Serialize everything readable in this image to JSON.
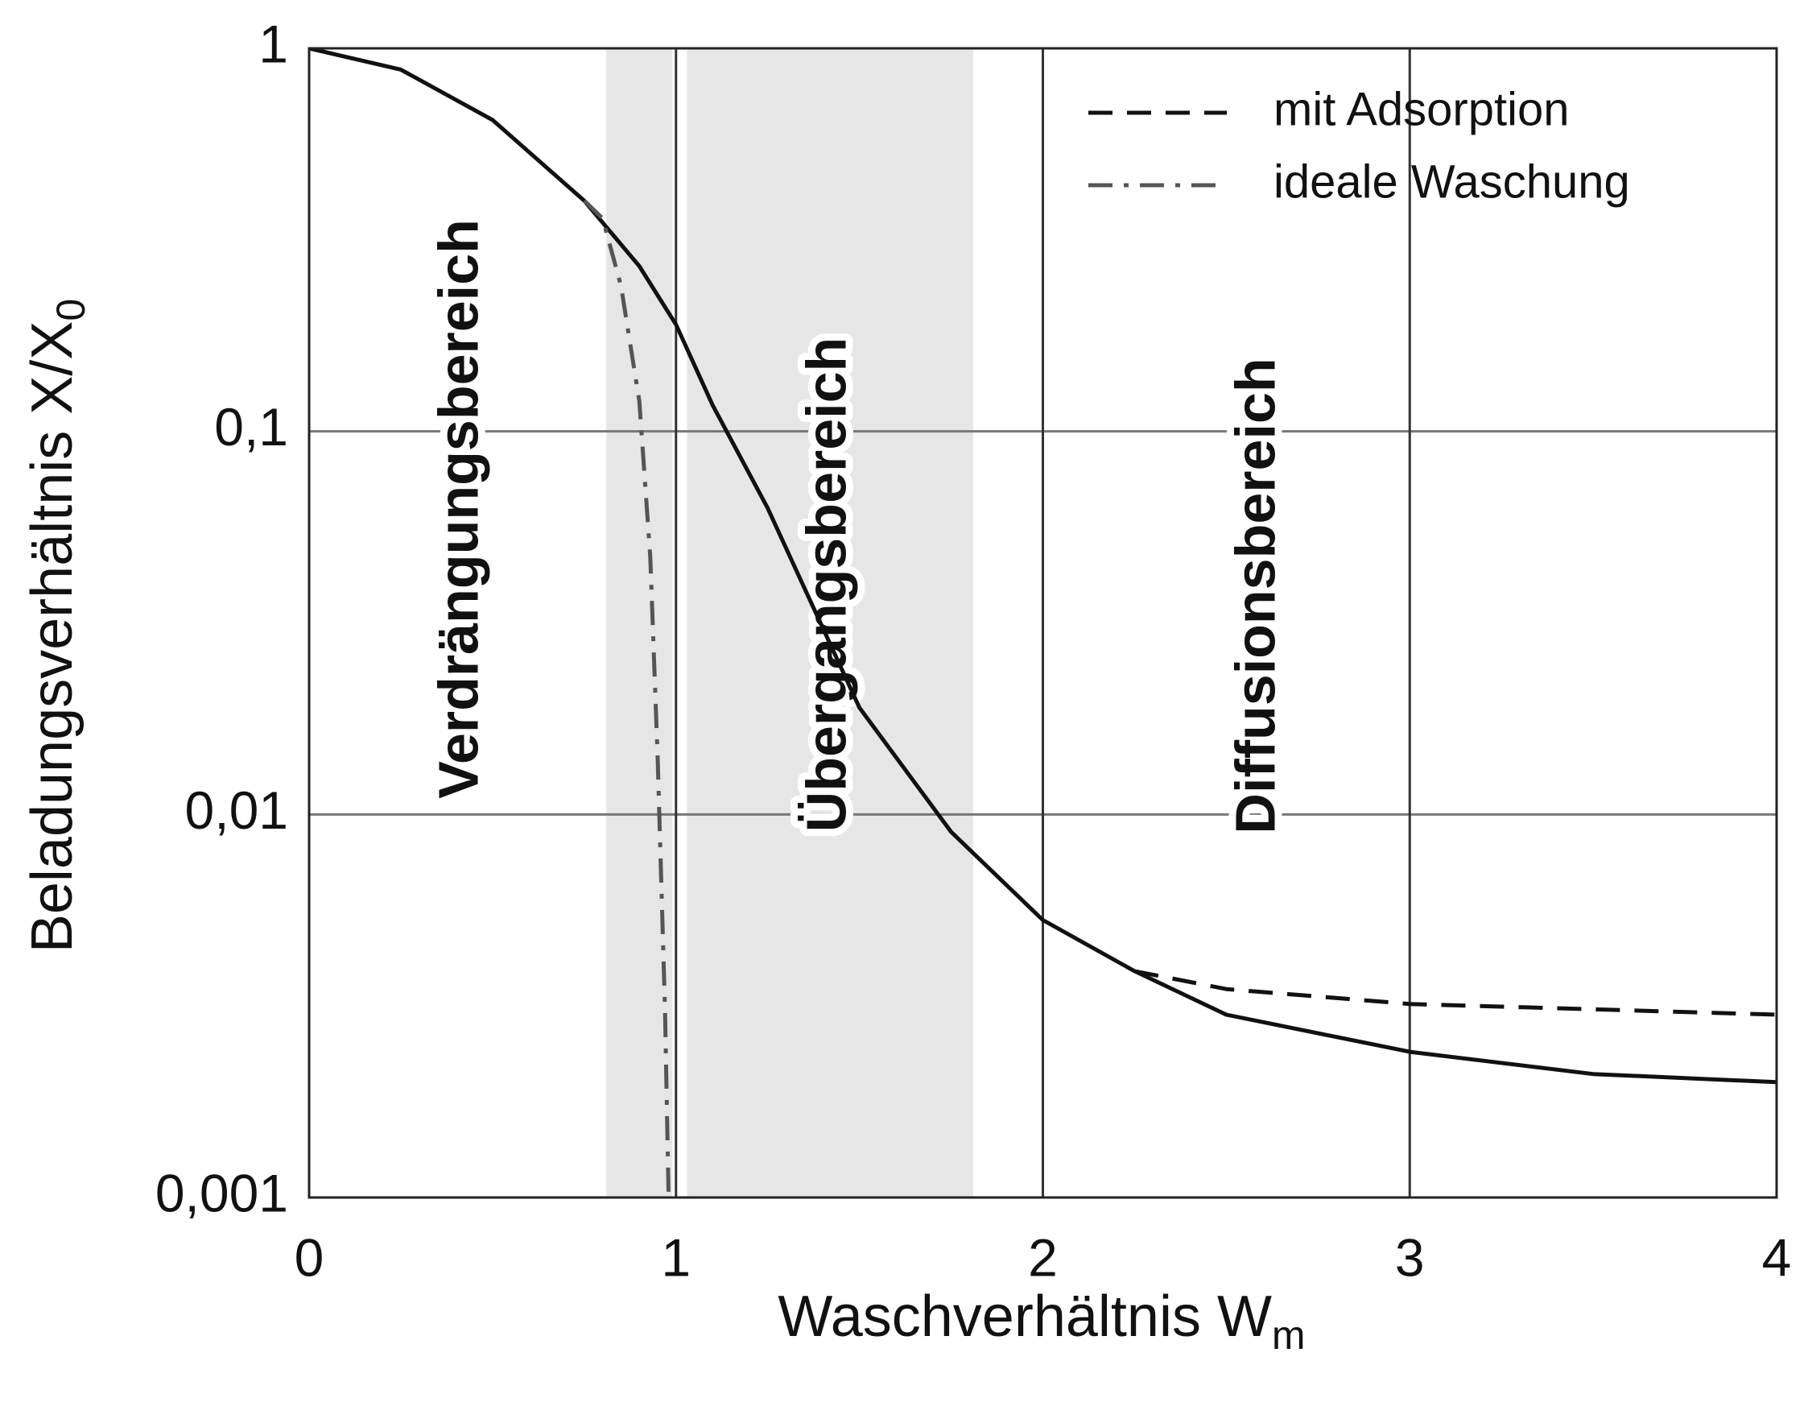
{
  "chart_data": {
    "type": "line",
    "xlabel": {
      "text": "Waschverhältnis W",
      "sub": "m"
    },
    "ylabel": {
      "text": "Beladungsverhältnis X/X",
      "sub": "0"
    },
    "x": [
      0,
      0.25,
      0.5,
      0.75,
      0.9,
      1.0,
      1.1,
      1.25,
      1.5,
      1.75,
      2.0,
      2.25,
      2.5,
      3.0,
      3.5,
      4.0
    ],
    "series": [
      {
        "color": "#111111",
        "style": "solid",
        "values": [
          1,
          0.88,
          0.65,
          0.4,
          0.27,
          0.19,
          0.117,
          0.063,
          0.019,
          0.009,
          0.0053,
          0.0039,
          0.003,
          0.0024,
          0.0021,
          0.002
        ]
      },
      {
        "name": "mit Adsorption",
        "color": "#111111",
        "style": "dashed",
        "x": [
          2.25,
          2.5,
          3.0,
          3.5,
          4.0
        ],
        "values": [
          0.0039,
          0.0035,
          0.0032,
          0.0031,
          0.003
        ]
      },
      {
        "name": "ideale Waschung",
        "color": "#555555",
        "style": "dashdot",
        "x": [
          0.75,
          0.8,
          0.85,
          0.9,
          0.93,
          0.95,
          0.97,
          0.98
        ],
        "values": [
          0.4,
          0.36,
          0.24,
          0.12,
          0.047,
          0.014,
          0.0031,
          0.001
        ]
      }
    ],
    "regions": [
      {
        "x": [
          0.81,
          0.99
        ]
      },
      {
        "x": [
          1.03,
          1.81
        ]
      }
    ],
    "annotations": [
      "Verdrängungsbereich",
      "Übergangsbereich",
      "Diffusionsbereich"
    ],
    "xlim": [
      0,
      4
    ],
    "xticks": [
      0,
      1,
      2,
      3,
      4
    ],
    "ylim": [
      0.001,
      1
    ],
    "log_y": true,
    "yticks": [
      {
        "value": 0.001,
        "label": "0,001"
      },
      {
        "value": 0.01,
        "label": "0,01"
      },
      {
        "value": 0.1,
        "label": "0,1"
      },
      1
    ],
    "grid": true,
    "legend": "upper right"
  }
}
